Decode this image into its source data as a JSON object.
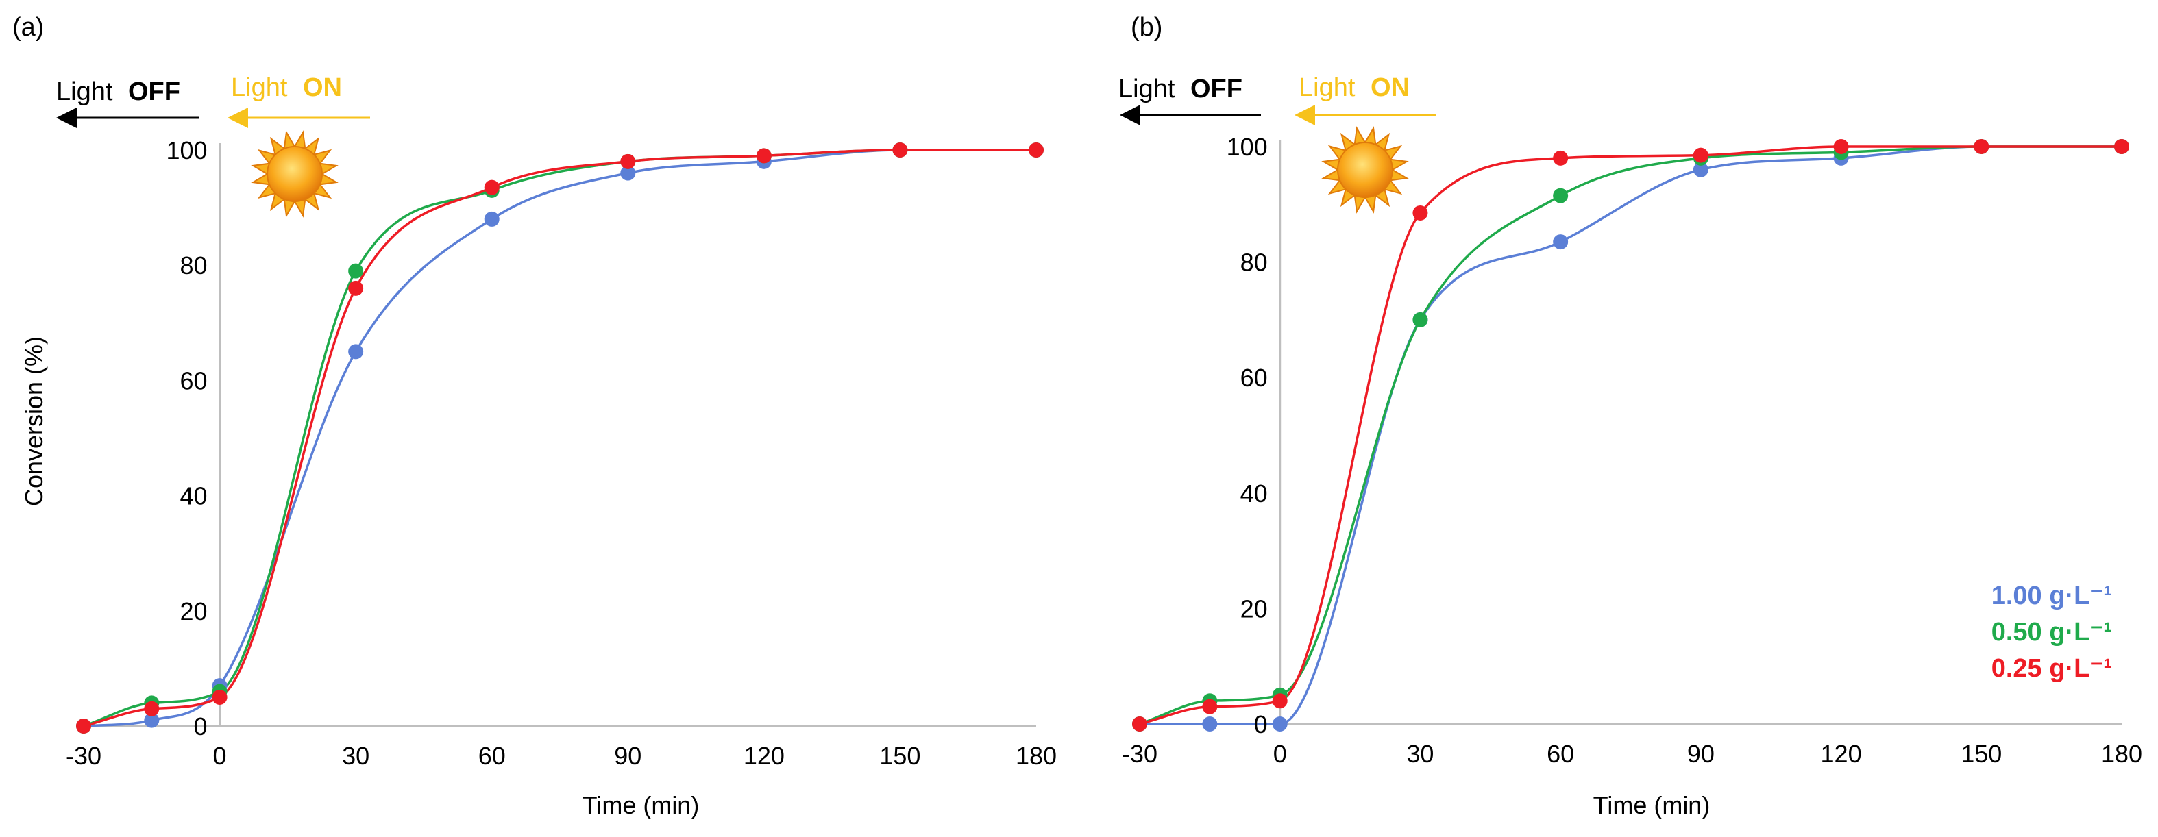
{
  "figure": {
    "panel_a_label": "(a)",
    "panel_b_label": "(b)"
  },
  "light": {
    "off_word": "Light",
    "off_state": "OFF",
    "on_word": "Light",
    "on_state": "ON",
    "on_color": "#f7c21b",
    "off_color": "#000000"
  },
  "sun_icon": "sun-icon",
  "legend": [
    {
      "label": "1.00 g·L⁻¹",
      "color": "#5b7fd6"
    },
    {
      "label": "0.50 g·L⁻¹",
      "color": "#1faa4b"
    },
    {
      "label": "0.25 g·L⁻¹",
      "color": "#ee1c25"
    }
  ],
  "chart_data": [
    {
      "type": "line",
      "panel": "(a)",
      "xlabel": "Time (min)",
      "ylabel": "Conversion (%)",
      "x": [
        -30,
        -15,
        0,
        30,
        60,
        90,
        120,
        150,
        180
      ],
      "xticks": [
        "-30",
        "0",
        "30",
        "60",
        "90",
        "120",
        "150",
        "180"
      ],
      "xtick_values": [
        -30,
        0,
        30,
        60,
        90,
        120,
        150,
        180
      ],
      "yticks": [
        "0",
        "20",
        "40",
        "60",
        "80",
        "100"
      ],
      "ytick_values": [
        0,
        20,
        40,
        60,
        80,
        100
      ],
      "xlim": [
        -30,
        180
      ],
      "ylim": [
        0,
        100
      ],
      "series": [
        {
          "name": "1.00 g·L⁻¹",
          "color": "#5b7fd6",
          "values": [
            0,
            1,
            7,
            65,
            88,
            96,
            98,
            100,
            100
          ]
        },
        {
          "name": "0.50 g·L⁻¹",
          "color": "#1faa4b",
          "values": [
            0,
            4,
            6,
            79,
            93,
            98,
            99,
            100,
            100
          ]
        },
        {
          "name": "0.25 g·L⁻¹",
          "color": "#ee1c25",
          "values": [
            0,
            3,
            5,
            76,
            93.5,
            98,
            99,
            100,
            100
          ]
        }
      ]
    },
    {
      "type": "line",
      "panel": "(b)",
      "xlabel": "Time (min)",
      "ylabel": "",
      "x": [
        -30,
        -15,
        0,
        30,
        60,
        90,
        120,
        150,
        180
      ],
      "xticks": [
        "-30",
        "0",
        "30",
        "60",
        "90",
        "120",
        "150",
        "180"
      ],
      "xtick_values": [
        -30,
        0,
        30,
        60,
        90,
        120,
        150,
        180
      ],
      "yticks": [
        "0",
        "20",
        "40",
        "60",
        "80",
        "100"
      ],
      "ytick_values": [
        0,
        20,
        40,
        60,
        80,
        100
      ],
      "xlim": [
        -30,
        180
      ],
      "ylim": [
        0,
        100
      ],
      "series": [
        {
          "name": "1.00 g·L⁻¹",
          "color": "#5b7fd6",
          "values": [
            0,
            0,
            0,
            70,
            83.5,
            96,
            98,
            100,
            100
          ]
        },
        {
          "name": "0.50 g·L⁻¹",
          "color": "#1faa4b",
          "values": [
            0,
            4,
            5,
            70,
            91.5,
            98,
            99,
            100,
            100
          ]
        },
        {
          "name": "0.25 g·L⁻¹",
          "color": "#ee1c25",
          "values": [
            0,
            3,
            4,
            88.5,
            98,
            98.5,
            100,
            100,
            100
          ]
        }
      ]
    }
  ]
}
